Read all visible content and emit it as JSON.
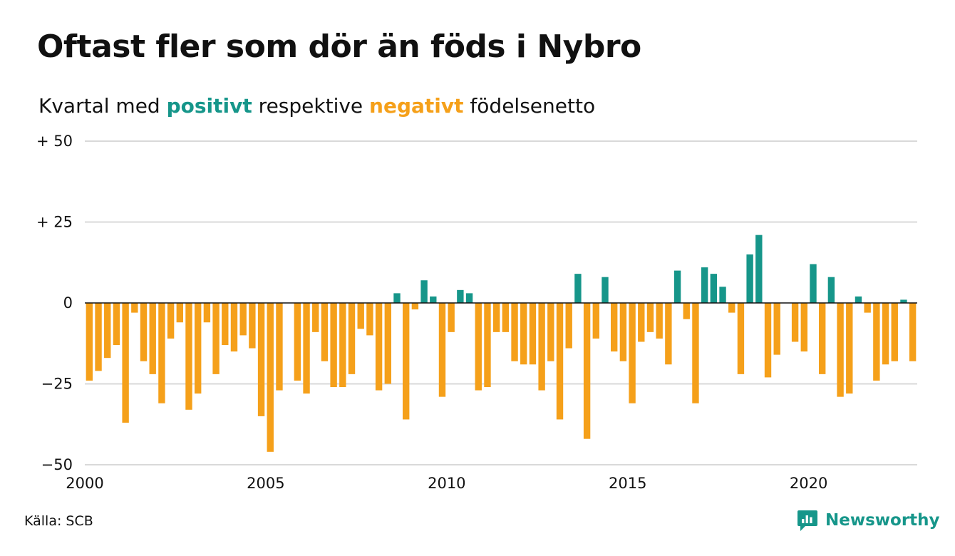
{
  "header": {
    "title": "Oftast fler som dör än föds i Nybro",
    "subtitle_pre": "Kvartal med ",
    "subtitle_pos": "positivt",
    "subtitle_mid": " respektive ",
    "subtitle_neg": "negativt",
    "subtitle_post": " födelsenetto"
  },
  "footer": {
    "source": "Källa: SCB",
    "brand": "Newsworthy",
    "brand_icon": "newsworthy-logo-icon"
  },
  "colors": {
    "positive": "#16968a",
    "negative": "#f5a01a",
    "grid": "#d9d9d9",
    "zero_line": "#111111"
  },
  "chart_data": {
    "type": "bar",
    "x_start": "2000 Q1",
    "ylim": [
      -50,
      50
    ],
    "yticks": [
      50,
      25,
      0,
      -25,
      -50
    ],
    "ytick_labels": [
      "+ 50",
      "+ 25",
      "0",
      "−25",
      "−50"
    ],
    "xticks": [
      2000,
      2005,
      2010,
      2015,
      2020
    ],
    "xtick_labels": [
      "2000",
      "2005",
      "2010",
      "2015",
      "2020"
    ],
    "grid": true,
    "values": [
      -24,
      -21,
      -17,
      -13,
      -37,
      -3,
      -18,
      -22,
      -31,
      -11,
      -6,
      -33,
      -28,
      -6,
      -22,
      -13,
      -15,
      -10,
      -14,
      -35,
      -46,
      -27,
      0,
      -24,
      -28,
      -9,
      -18,
      -26,
      -26,
      -22,
      -8,
      -10,
      -27,
      -25,
      3,
      -36,
      -2,
      7,
      2,
      -29,
      -9,
      4,
      3,
      -27,
      -26,
      -9,
      -9,
      -18,
      -19,
      -19,
      -27,
      -18,
      -36,
      -14,
      9,
      -42,
      -11,
      8,
      -15,
      -18,
      -31,
      -12,
      -9,
      -11,
      -19,
      10,
      -5,
      -31,
      11,
      9,
      5,
      -3,
      -22,
      15,
      21,
      -23,
      -16,
      0,
      -12,
      -15,
      12,
      -22,
      8,
      -29,
      -28,
      2,
      -3,
      -24,
      -19,
      -18,
      1,
      -18
    ]
  }
}
